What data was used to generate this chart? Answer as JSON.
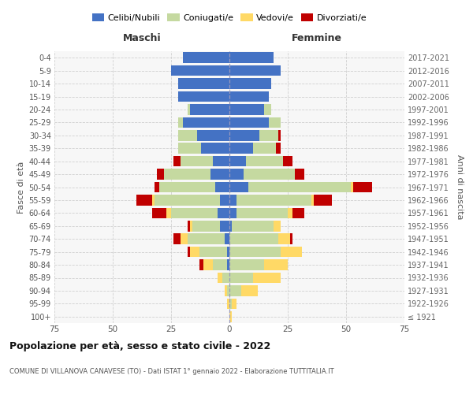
{
  "age_groups": [
    "100+",
    "95-99",
    "90-94",
    "85-89",
    "80-84",
    "75-79",
    "70-74",
    "65-69",
    "60-64",
    "55-59",
    "50-54",
    "45-49",
    "40-44",
    "35-39",
    "30-34",
    "25-29",
    "20-24",
    "15-19",
    "10-14",
    "5-9",
    "0-4"
  ],
  "birth_years": [
    "≤ 1921",
    "1922-1926",
    "1927-1931",
    "1932-1936",
    "1937-1941",
    "1942-1946",
    "1947-1951",
    "1952-1956",
    "1957-1961",
    "1962-1966",
    "1967-1971",
    "1972-1976",
    "1977-1981",
    "1982-1986",
    "1987-1991",
    "1992-1996",
    "1997-2001",
    "2002-2006",
    "2007-2011",
    "2012-2016",
    "2017-2021"
  ],
  "colors": {
    "celibi": "#4472C4",
    "coniugati": "#C5D9A0",
    "vedovi": "#FFD966",
    "divorziati": "#C00000"
  },
  "males": {
    "celibi": [
      0,
      0,
      0,
      0,
      1,
      1,
      2,
      4,
      5,
      4,
      6,
      8,
      7,
      12,
      14,
      20,
      17,
      22,
      22,
      25,
      20
    ],
    "coniugati": [
      0,
      0,
      1,
      3,
      6,
      12,
      16,
      12,
      20,
      28,
      24,
      20,
      14,
      10,
      8,
      2,
      1,
      0,
      0,
      0,
      0
    ],
    "vedovi": [
      0,
      1,
      1,
      2,
      4,
      4,
      3,
      1,
      2,
      1,
      0,
      0,
      0,
      0,
      0,
      0,
      0,
      0,
      0,
      0,
      0
    ],
    "divorziati": [
      0,
      0,
      0,
      0,
      2,
      1,
      3,
      1,
      6,
      7,
      2,
      3,
      3,
      0,
      0,
      0,
      0,
      0,
      0,
      0,
      0
    ]
  },
  "females": {
    "celibi": [
      0,
      0,
      0,
      0,
      0,
      0,
      0,
      1,
      3,
      3,
      8,
      6,
      7,
      10,
      13,
      17,
      15,
      17,
      18,
      22,
      19
    ],
    "coniugati": [
      0,
      1,
      5,
      10,
      15,
      22,
      21,
      18,
      22,
      32,
      44,
      22,
      16,
      10,
      8,
      5,
      3,
      0,
      0,
      0,
      0
    ],
    "vedovi": [
      1,
      2,
      7,
      12,
      10,
      9,
      5,
      3,
      2,
      1,
      1,
      0,
      0,
      0,
      0,
      0,
      0,
      0,
      0,
      0,
      0
    ],
    "divorziati": [
      0,
      0,
      0,
      0,
      0,
      0,
      1,
      0,
      5,
      8,
      8,
      4,
      4,
      2,
      1,
      0,
      0,
      0,
      0,
      0,
      0
    ]
  },
  "xlim": 75,
  "title": "Popolazione per età, sesso e stato civile - 2022",
  "subtitle": "COMUNE DI VILLANOVA CANAVESE (TO) - Dati ISTAT 1° gennaio 2022 - Elaborazione TUTTITALIA.IT",
  "ylabel": "Fasce di età",
  "ylabel_right": "Anni di nascita",
  "xlabel_left": "Maschi",
  "xlabel_right": "Femmine",
  "legend_labels": [
    "Celibi/Nubili",
    "Coniugati/e",
    "Vedovi/e",
    "Divorziati/e"
  ],
  "bg_color": "#ffffff",
  "grid_color": "#d0d0d0",
  "plot_bg": "#f7f7f7"
}
